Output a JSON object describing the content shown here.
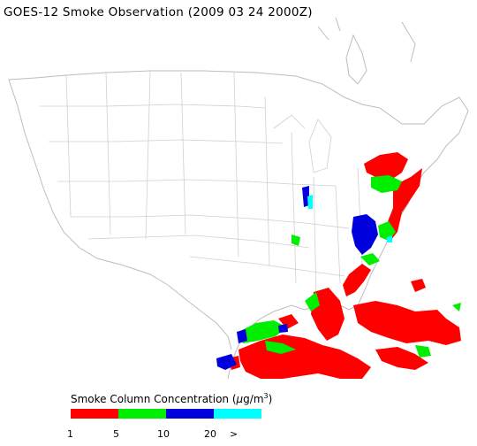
{
  "title": "GOES-12 Smoke Observation (2009 03 24  2000Z)",
  "legend": {
    "title_prefix": "Smoke Column Concentration (",
    "title_unit_mu": "μ",
    "title_unit_rest": "g/m",
    "title_unit_sup": "3",
    "title_suffix": ")",
    "colors": [
      "#ff0000",
      "#00ee00",
      "#0000dd",
      "#00ffff"
    ],
    "ticks": [
      "1",
      "5",
      "10",
      "20",
      ">"
    ]
  },
  "map_colors": {
    "land_outline": "#bdbdbd",
    "state_lines": "#cfcfcf",
    "smoke_low": "#ff0000",
    "smoke_mid": "#00ee00",
    "smoke_high": "#0000dd",
    "smoke_max": "#00ffff"
  }
}
